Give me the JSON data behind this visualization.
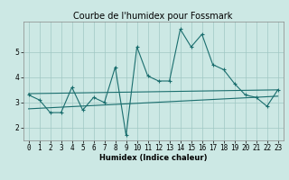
{
  "title": "Courbe de l'humidex pour Fossmark",
  "xlabel": "Humidex (Indice chaleur)",
  "background_color": "#cce8e4",
  "line_color": "#1a6e6e",
  "x_values": [
    0,
    1,
    2,
    3,
    4,
    5,
    6,
    7,
    8,
    9,
    10,
    11,
    12,
    13,
    14,
    15,
    16,
    17,
    18,
    19,
    20,
    21,
    22,
    23
  ],
  "y_drop": [
    3.3,
    3.1,
    2.6,
    2.6,
    3.6,
    2.7,
    3.2,
    3.0,
    4.4,
    1.7,
    5.2,
    4.05,
    3.85,
    3.85,
    5.9,
    5.2,
    5.7,
    4.5,
    4.3,
    3.75,
    3.3,
    3.2,
    2.85,
    3.5
  ],
  "y_trend1_start": 3.35,
  "y_trend1_end": 3.5,
  "y_trend2_start": 2.75,
  "y_trend2_end": 3.25,
  "ylim": [
    1.5,
    6.2
  ],
  "yticks": [
    2,
    3,
    4,
    5
  ],
  "xticks": [
    0,
    1,
    2,
    3,
    4,
    5,
    6,
    7,
    8,
    9,
    10,
    11,
    12,
    13,
    14,
    15,
    16,
    17,
    18,
    19,
    20,
    21,
    22,
    23
  ],
  "grid_color": "#a0c8c4",
  "title_fontsize": 7,
  "axis_fontsize": 6,
  "tick_fontsize": 5.5
}
